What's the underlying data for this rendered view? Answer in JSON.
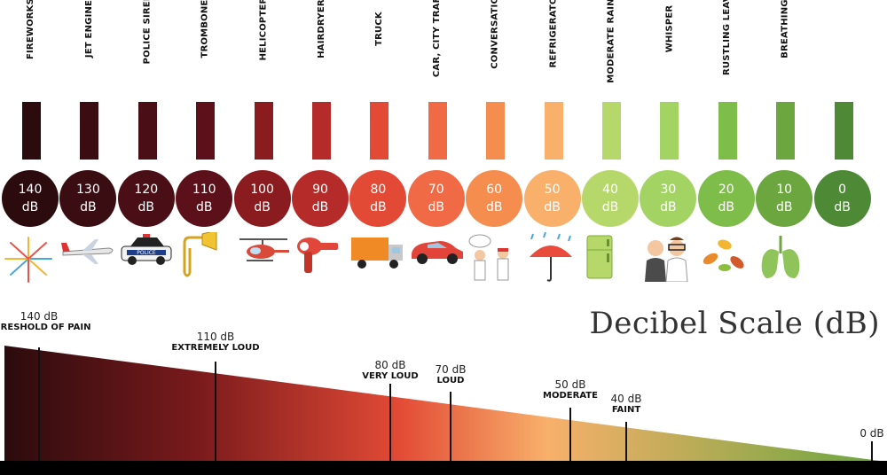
{
  "title": "Decibel Scale (dB)",
  "sources": [
    {
      "label": "FIREWORKS",
      "db": "140",
      "unit": "dB",
      "color": "#2b0b0d",
      "icon": "fireworks-icon"
    },
    {
      "label": "JET ENGINE",
      "db": "130",
      "unit": "dB",
      "color": "#3a0d12",
      "icon": "jet-engine-icon"
    },
    {
      "label": "POLICE SIREN",
      "db": "120",
      "unit": "dB",
      "color": "#4a0f16",
      "icon": "police-car-icon"
    },
    {
      "label": "TROMBONE",
      "db": "110",
      "unit": "dB",
      "color": "#5c1019",
      "icon": "trombone-icon"
    },
    {
      "label": "HELICOPTER",
      "db": "100",
      "unit": "dB",
      "color": "#8a1c1f",
      "icon": "helicopter-icon"
    },
    {
      "label": "HAIRDRYER",
      "db": "90",
      "unit": "dB",
      "color": "#b52b2a",
      "icon": "hairdryer-icon"
    },
    {
      "label": "TRUCK",
      "db": "80",
      "unit": "dB",
      "color": "#e24a35",
      "icon": "truck-icon"
    },
    {
      "label": "CAR, CITY TRAFFIC",
      "db": "70",
      "unit": "dB",
      "color": "#f06a45",
      "icon": "car-icon"
    },
    {
      "label": "CONVERSATION",
      "db": "60",
      "unit": "dB",
      "color": "#f48d4d",
      "icon": "conversation-icon"
    },
    {
      "label": "REFRIGERATOR",
      "db": "50",
      "unit": "dB",
      "color": "#f8b06b",
      "icon": "rain-umbrella-icon"
    },
    {
      "label": "MODERATE RAINFALL",
      "db": "40",
      "unit": "dB",
      "color": "#b6d86a",
      "icon": "refrigerator-icon"
    },
    {
      "label": "WHISPER",
      "db": "30",
      "unit": "dB",
      "color": "#a3d463",
      "icon": "whisper-icon"
    },
    {
      "label": "RUSTLING LEAVES",
      "db": "20",
      "unit": "dB",
      "color": "#7fbd4a",
      "icon": "leaves-icon"
    },
    {
      "label": "BREATHING",
      "db": "10",
      "unit": "dB",
      "color": "#6ba63f",
      "icon": "lungs-icon"
    },
    {
      "label": "",
      "db": "0",
      "unit": "dB",
      "color": "#4e8a35",
      "icon": ""
    }
  ],
  "annotations": [
    {
      "db": "140 dB",
      "label": "THRESHOLD OF PAIN"
    },
    {
      "db": "110 dB",
      "label": "EXTREMELY LOUD"
    },
    {
      "db": "80 dB",
      "label": "VERY LOUD"
    },
    {
      "db": "70 dB",
      "label": "LOUD"
    },
    {
      "db": "50 dB",
      "label": "MODERATE"
    },
    {
      "db": "40 dB",
      "label": "FAINT"
    },
    {
      "db": "0 dB",
      "label": ""
    }
  ],
  "colors": {
    "gradient_start": "#2b0b0d",
    "gradient_mid1": "#7a1a1c",
    "gradient_mid2": "#e24a35",
    "gradient_mid3": "#f8b06b",
    "gradient_end": "#6ba63f"
  }
}
